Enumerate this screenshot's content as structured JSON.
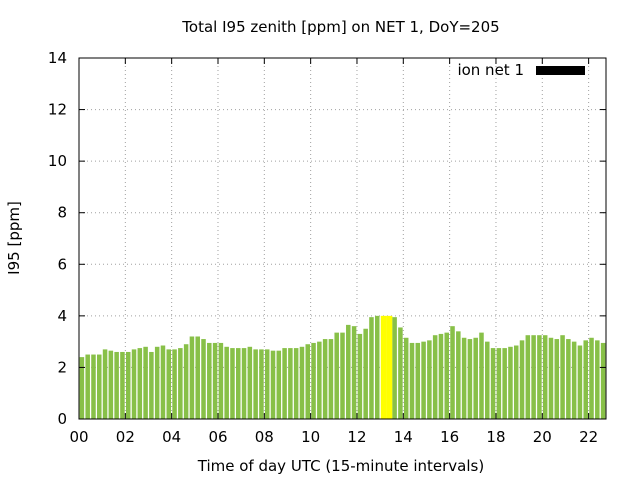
{
  "chart_data": {
    "type": "bar",
    "title": "Total I95 zenith [ppm] on NET 1, DoY=205",
    "xlabel": "Time of day UTC (15-minute intervals)",
    "ylabel": "I95 [ppm]",
    "xlim": [
      0,
      22.75
    ],
    "ylim": [
      0,
      14
    ],
    "xticks": [
      0,
      2,
      4,
      6,
      8,
      10,
      12,
      14,
      16,
      18,
      20,
      22
    ],
    "xtick_labels": [
      "00",
      "02",
      "04",
      "06",
      "08",
      "10",
      "12",
      "14",
      "16",
      "18",
      "20",
      "22"
    ],
    "yticks": [
      0,
      2,
      4,
      6,
      8,
      10,
      12,
      14
    ],
    "ytick_labels": [
      "0",
      "2",
      "4",
      "6",
      "8",
      "10",
      "12",
      "14"
    ],
    "grid": true,
    "legend": {
      "position": "top-right",
      "entries": [
        {
          "label": "ion net 1",
          "color": "#000000"
        }
      ]
    },
    "bar_color": "#88c048",
    "highlight_color": "#ffff00",
    "highlight_x": [
      13.0,
      13.25
    ],
    "x_interval_hours": 0.25,
    "x": [
      0,
      0.25,
      0.5,
      0.75,
      1,
      1.25,
      1.5,
      1.75,
      2,
      2.25,
      2.5,
      2.75,
      3,
      3.25,
      3.5,
      3.75,
      4,
      4.25,
      4.5,
      4.75,
      5,
      5.25,
      5.5,
      5.75,
      6,
      6.25,
      6.5,
      6.75,
      7,
      7.25,
      7.5,
      7.75,
      8,
      8.25,
      8.5,
      8.75,
      9,
      9.25,
      9.5,
      9.75,
      10,
      10.25,
      10.5,
      10.75,
      11,
      11.25,
      11.5,
      11.75,
      12,
      12.25,
      12.5,
      12.75,
      13,
      13.25,
      13.5,
      13.75,
      14,
      14.25,
      14.5,
      14.75,
      15,
      15.25,
      15.5,
      15.75,
      16,
      16.25,
      16.5,
      16.75,
      17,
      17.25,
      17.5,
      17.75,
      18,
      18.25,
      18.5,
      18.75,
      19,
      19.25,
      19.5,
      19.75,
      20,
      20.25,
      20.5,
      20.75,
      21,
      21.25,
      21.5,
      21.75,
      22,
      22.25,
      22.5
    ],
    "values": [
      2.4,
      2.5,
      2.5,
      2.5,
      2.7,
      2.65,
      2.6,
      2.6,
      2.6,
      2.7,
      2.75,
      2.8,
      2.6,
      2.8,
      2.85,
      2.7,
      2.7,
      2.75,
      2.9,
      3.2,
      3.2,
      3.1,
      2.95,
      2.95,
      2.95,
      2.8,
      2.75,
      2.75,
      2.75,
      2.8,
      2.7,
      2.7,
      2.7,
      2.65,
      2.65,
      2.75,
      2.75,
      2.75,
      2.8,
      2.9,
      2.95,
      3.0,
      3.1,
      3.1,
      3.35,
      3.35,
      3.65,
      3.6,
      3.3,
      3.5,
      3.95,
      4.0,
      4.0,
      4.0,
      3.95,
      3.55,
      3.15,
      2.95,
      2.95,
      3.0,
      3.05,
      3.25,
      3.3,
      3.35,
      3.6,
      3.4,
      3.15,
      3.1,
      3.15,
      3.35,
      3.0,
      2.75,
      2.75,
      2.75,
      2.8,
      2.85,
      3.05,
      3.25,
      3.25,
      3.25,
      3.25,
      3.15,
      3.1,
      3.25,
      3.1,
      3.0,
      2.85,
      3.05,
      3.15,
      3.05,
      2.95
    ]
  }
}
